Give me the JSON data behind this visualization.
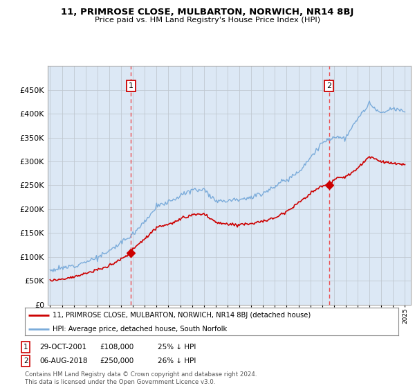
{
  "title": "11, PRIMROSE CLOSE, MULBARTON, NORWICH, NR14 8BJ",
  "subtitle": "Price paid vs. HM Land Registry's House Price Index (HPI)",
  "legend_line1": "11, PRIMROSE CLOSE, MULBARTON, NORWICH, NR14 8BJ (detached house)",
  "legend_line2": "HPI: Average price, detached house, South Norfolk",
  "annotation1_date": "29-OCT-2001",
  "annotation1_price": "£108,000",
  "annotation1_hpi": "25% ↓ HPI",
  "annotation1_year": 2001.83,
  "annotation1_value": 108000,
  "annotation2_date": "06-AUG-2018",
  "annotation2_price": "£250,000",
  "annotation2_hpi": "26% ↓ HPI",
  "annotation2_year": 2018.58,
  "annotation2_value": 250000,
  "footer": "Contains HM Land Registry data © Crown copyright and database right 2024.\nThis data is licensed under the Open Government Licence v3.0.",
  "plot_bg_color": "#dce8f5",
  "red_color": "#cc0000",
  "blue_color": "#7aabda",
  "marker_box_color": "#cc0000",
  "vline_color": "#ee3333",
  "grid_color": "#c0c8d0",
  "ylim": [
    0,
    500000
  ],
  "xlim_start": 1994.8,
  "xlim_end": 2025.5,
  "yticks": [
    0,
    50000,
    100000,
    150000,
    200000,
    250000,
    300000,
    350000,
    400000,
    450000
  ],
  "hpi_anchors_y": [
    1995,
    1996,
    1997,
    1998,
    1999,
    2000,
    2001,
    2002,
    2003,
    2004,
    2005,
    2006,
    2007,
    2008,
    2009,
    2010,
    2011,
    2012,
    2013,
    2014,
    2015,
    2016,
    2017,
    2018,
    2019,
    2020,
    2021,
    2022,
    2023,
    2024,
    2025
  ],
  "hpi_anchors_v": [
    72000,
    76000,
    82000,
    90000,
    98000,
    112000,
    130000,
    148000,
    175000,
    205000,
    215000,
    228000,
    240000,
    242000,
    218000,
    218000,
    222000,
    224000,
    234000,
    248000,
    262000,
    278000,
    308000,
    338000,
    352000,
    348000,
    390000,
    420000,
    400000,
    410000,
    405000
  ],
  "prop_anchors_y": [
    1995,
    1996,
    1997,
    1998,
    1999,
    2000,
    2001,
    2001.83,
    2002,
    2003,
    2004,
    2005,
    2006,
    2007,
    2008,
    2009,
    2010,
    2011,
    2012,
    2013,
    2014,
    2015,
    2016,
    2017,
    2018,
    2018.58,
    2019,
    2020,
    2021,
    2022,
    2023,
    2024,
    2025
  ],
  "prop_anchors_v": [
    50000,
    54000,
    58000,
    65000,
    72000,
    82000,
    95000,
    108000,
    116000,
    138000,
    162000,
    168000,
    178000,
    188000,
    190000,
    172000,
    168000,
    168000,
    170000,
    174000,
    182000,
    196000,
    213000,
    233000,
    248000,
    250000,
    262000,
    268000,
    285000,
    310000,
    300000,
    296000,
    292000
  ],
  "noise_seed": 12
}
